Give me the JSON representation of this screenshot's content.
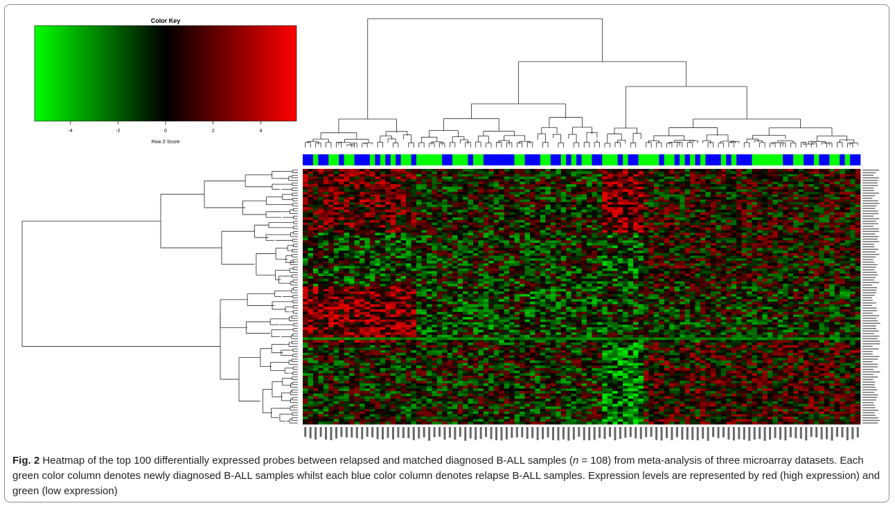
{
  "colors": {
    "low": "#00ff00",
    "mid": "#000000",
    "high": "#ff0000",
    "diagnosed_bar": "#00ff00",
    "relapse_bar": "#0000ff",
    "dendrogram": "#222222",
    "background": "#ffffff"
  },
  "chart_data": [
    {
      "type": "colorbar",
      "title": "Color Key",
      "xlabel": "Row Z-Score",
      "ticks": [
        -4,
        -2,
        0,
        2,
        4
      ],
      "tick_labels": [
        "-4",
        "-2",
        "0",
        "2",
        "4"
      ],
      "range": [
        -5.5,
        5.5
      ],
      "colormap": [
        "#00ff00",
        "#000000",
        "#ff0000"
      ]
    },
    {
      "type": "heatmap",
      "n_rows": 100,
      "n_columns": 108,
      "row_dendrogram": true,
      "column_dendrogram": true,
      "column_groups": [
        {
          "name": "newly diagnosed B-ALL",
          "color": "#00ff00"
        },
        {
          "name": "relapse B-ALL",
          "color": "#0000ff"
        }
      ]
    }
  ],
  "caption": {
    "label": "Fig. 2",
    "text_before_n": " Heatmap of the top 100 differentially expressed probes between relapsed and matched diagnosed B-ALL samples (",
    "n_symbol": "n",
    "text_after_n": " = 108) from meta-analysis of three microarray datasets. Each green color column denotes newly diagnosed B-ALL samples whilst each blue color column denotes relapse B-ALL samples. Expression levels are represented by red (high expression) and green (low expression)"
  }
}
